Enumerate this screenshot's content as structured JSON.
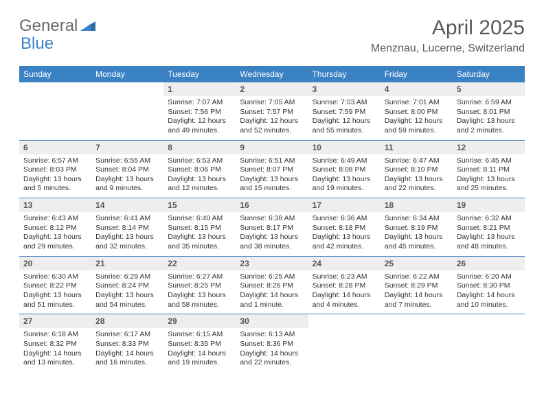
{
  "brand": {
    "word1": "General",
    "word2": "Blue"
  },
  "title": "April 2025",
  "location": "Menznau, Lucerne, Switzerland",
  "colors": {
    "accent": "#3b82c4",
    "header_bg": "#3b82c4",
    "header_text": "#ffffff",
    "daynum_bg": "#eeeeee",
    "text": "#333333",
    "logo_gray": "#6a6a6a"
  },
  "weekdays": [
    "Sunday",
    "Monday",
    "Tuesday",
    "Wednesday",
    "Thursday",
    "Friday",
    "Saturday"
  ],
  "weeks": [
    [
      {
        "empty": true
      },
      {
        "empty": true
      },
      {
        "num": "1",
        "sunrise": "Sunrise: 7:07 AM",
        "sunset": "Sunset: 7:56 PM",
        "daylight": "Daylight: 12 hours and 49 minutes."
      },
      {
        "num": "2",
        "sunrise": "Sunrise: 7:05 AM",
        "sunset": "Sunset: 7:57 PM",
        "daylight": "Daylight: 12 hours and 52 minutes."
      },
      {
        "num": "3",
        "sunrise": "Sunrise: 7:03 AM",
        "sunset": "Sunset: 7:59 PM",
        "daylight": "Daylight: 12 hours and 55 minutes."
      },
      {
        "num": "4",
        "sunrise": "Sunrise: 7:01 AM",
        "sunset": "Sunset: 8:00 PM",
        "daylight": "Daylight: 12 hours and 59 minutes."
      },
      {
        "num": "5",
        "sunrise": "Sunrise: 6:59 AM",
        "sunset": "Sunset: 8:01 PM",
        "daylight": "Daylight: 13 hours and 2 minutes."
      }
    ],
    [
      {
        "num": "6",
        "sunrise": "Sunrise: 6:57 AM",
        "sunset": "Sunset: 8:03 PM",
        "daylight": "Daylight: 13 hours and 5 minutes."
      },
      {
        "num": "7",
        "sunrise": "Sunrise: 6:55 AM",
        "sunset": "Sunset: 8:04 PM",
        "daylight": "Daylight: 13 hours and 9 minutes."
      },
      {
        "num": "8",
        "sunrise": "Sunrise: 6:53 AM",
        "sunset": "Sunset: 8:06 PM",
        "daylight": "Daylight: 13 hours and 12 minutes."
      },
      {
        "num": "9",
        "sunrise": "Sunrise: 6:51 AM",
        "sunset": "Sunset: 8:07 PM",
        "daylight": "Daylight: 13 hours and 15 minutes."
      },
      {
        "num": "10",
        "sunrise": "Sunrise: 6:49 AM",
        "sunset": "Sunset: 8:08 PM",
        "daylight": "Daylight: 13 hours and 19 minutes."
      },
      {
        "num": "11",
        "sunrise": "Sunrise: 6:47 AM",
        "sunset": "Sunset: 8:10 PM",
        "daylight": "Daylight: 13 hours and 22 minutes."
      },
      {
        "num": "12",
        "sunrise": "Sunrise: 6:45 AM",
        "sunset": "Sunset: 8:11 PM",
        "daylight": "Daylight: 13 hours and 25 minutes."
      }
    ],
    [
      {
        "num": "13",
        "sunrise": "Sunrise: 6:43 AM",
        "sunset": "Sunset: 8:12 PM",
        "daylight": "Daylight: 13 hours and 29 minutes."
      },
      {
        "num": "14",
        "sunrise": "Sunrise: 6:41 AM",
        "sunset": "Sunset: 8:14 PM",
        "daylight": "Daylight: 13 hours and 32 minutes."
      },
      {
        "num": "15",
        "sunrise": "Sunrise: 6:40 AM",
        "sunset": "Sunset: 8:15 PM",
        "daylight": "Daylight: 13 hours and 35 minutes."
      },
      {
        "num": "16",
        "sunrise": "Sunrise: 6:38 AM",
        "sunset": "Sunset: 8:17 PM",
        "daylight": "Daylight: 13 hours and 38 minutes."
      },
      {
        "num": "17",
        "sunrise": "Sunrise: 6:36 AM",
        "sunset": "Sunset: 8:18 PM",
        "daylight": "Daylight: 13 hours and 42 minutes."
      },
      {
        "num": "18",
        "sunrise": "Sunrise: 6:34 AM",
        "sunset": "Sunset: 8:19 PM",
        "daylight": "Daylight: 13 hours and 45 minutes."
      },
      {
        "num": "19",
        "sunrise": "Sunrise: 6:32 AM",
        "sunset": "Sunset: 8:21 PM",
        "daylight": "Daylight: 13 hours and 48 minutes."
      }
    ],
    [
      {
        "num": "20",
        "sunrise": "Sunrise: 6:30 AM",
        "sunset": "Sunset: 8:22 PM",
        "daylight": "Daylight: 13 hours and 51 minutes."
      },
      {
        "num": "21",
        "sunrise": "Sunrise: 6:29 AM",
        "sunset": "Sunset: 8:24 PM",
        "daylight": "Daylight: 13 hours and 54 minutes."
      },
      {
        "num": "22",
        "sunrise": "Sunrise: 6:27 AM",
        "sunset": "Sunset: 8:25 PM",
        "daylight": "Daylight: 13 hours and 58 minutes."
      },
      {
        "num": "23",
        "sunrise": "Sunrise: 6:25 AM",
        "sunset": "Sunset: 8:26 PM",
        "daylight": "Daylight: 14 hours and 1 minute."
      },
      {
        "num": "24",
        "sunrise": "Sunrise: 6:23 AM",
        "sunset": "Sunset: 8:28 PM",
        "daylight": "Daylight: 14 hours and 4 minutes."
      },
      {
        "num": "25",
        "sunrise": "Sunrise: 6:22 AM",
        "sunset": "Sunset: 8:29 PM",
        "daylight": "Daylight: 14 hours and 7 minutes."
      },
      {
        "num": "26",
        "sunrise": "Sunrise: 6:20 AM",
        "sunset": "Sunset: 8:30 PM",
        "daylight": "Daylight: 14 hours and 10 minutes."
      }
    ],
    [
      {
        "num": "27",
        "sunrise": "Sunrise: 6:18 AM",
        "sunset": "Sunset: 8:32 PM",
        "daylight": "Daylight: 14 hours and 13 minutes."
      },
      {
        "num": "28",
        "sunrise": "Sunrise: 6:17 AM",
        "sunset": "Sunset: 8:33 PM",
        "daylight": "Daylight: 14 hours and 16 minutes."
      },
      {
        "num": "29",
        "sunrise": "Sunrise: 6:15 AM",
        "sunset": "Sunset: 8:35 PM",
        "daylight": "Daylight: 14 hours and 19 minutes."
      },
      {
        "num": "30",
        "sunrise": "Sunrise: 6:13 AM",
        "sunset": "Sunset: 8:36 PM",
        "daylight": "Daylight: 14 hours and 22 minutes."
      },
      {
        "empty": true
      },
      {
        "empty": true
      },
      {
        "empty": true
      }
    ]
  ]
}
